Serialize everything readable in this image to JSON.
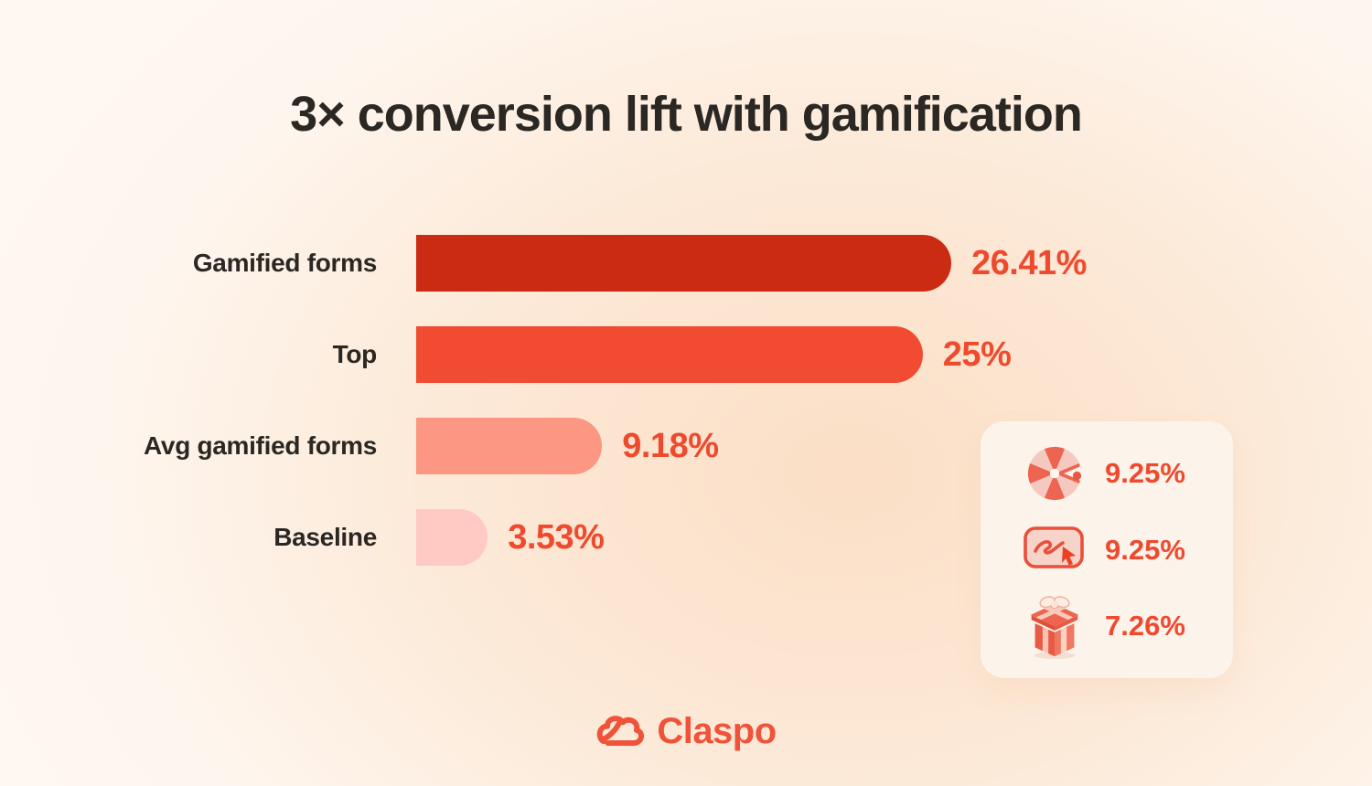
{
  "page": {
    "title": "3× conversion lift with gamification"
  },
  "chart_data": {
    "type": "bar",
    "orientation": "horizontal",
    "title": "3× conversion lift with gamification",
    "categories": [
      "Gamified forms",
      "Top",
      "Avg gamified forms",
      "Baseline"
    ],
    "values": [
      26.41,
      25,
      9.18,
      3.53
    ],
    "value_labels": [
      "26.41%",
      "25%",
      "9.18%",
      "3.53%"
    ],
    "bar_colors": [
      "#cb2b12",
      "#f14c31",
      "#fb9782",
      "#ffc9c4"
    ],
    "xlim": [
      0,
      26.41
    ],
    "grid": false,
    "value_label_position": "right-of-bar",
    "legend": "none"
  },
  "stats_card": {
    "items": [
      {
        "icon": "fortune-wheel-icon",
        "value": "9.25%"
      },
      {
        "icon": "popup-scribble-icon",
        "value": "9.25%"
      },
      {
        "icon": "gift-box-icon",
        "value": "7.26%"
      }
    ]
  },
  "footer": {
    "brand_name": "Claspo",
    "logo_icon": "claspo-cloud-icon"
  },
  "colors": {
    "accent": "#ef4a2e",
    "title_text": "#2b2723",
    "card_background": "#fcf3ea",
    "background_center": "#fbdfc6",
    "background_edge": "#fef6ee",
    "logo": "#f0533a"
  }
}
